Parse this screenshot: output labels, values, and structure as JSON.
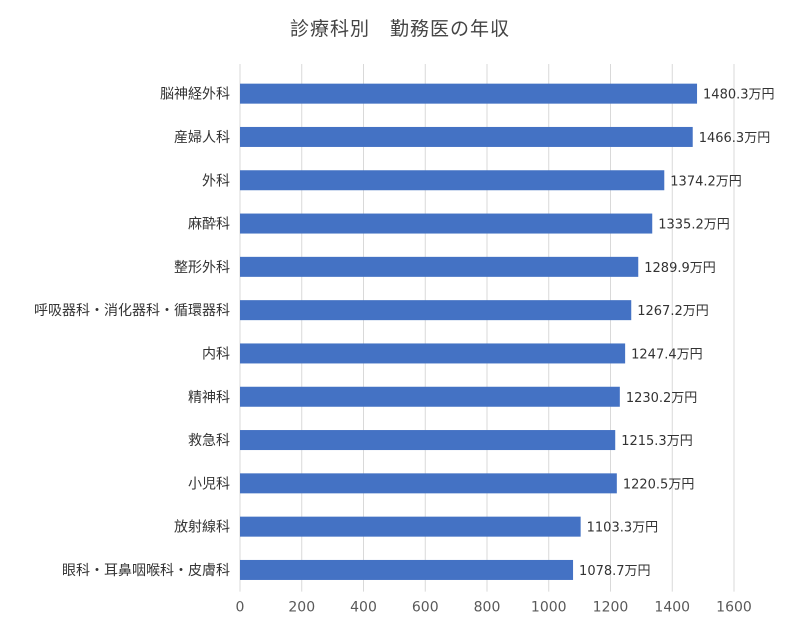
{
  "chart_data": {
    "type": "bar",
    "orientation": "horizontal",
    "title": "診療科別　勤務医の年収",
    "categories": [
      "脳神経外科",
      "産婦人科",
      "外科",
      "麻酔科",
      "整形外科",
      "呼吸器科・消化器科・循環器科",
      "内科",
      "精神科",
      "救急科",
      "小児科",
      "放射線科",
      "眼科・耳鼻咽喉科・皮膚科"
    ],
    "values": [
      1480.3,
      1466.3,
      1374.2,
      1335.2,
      1289.9,
      1267.2,
      1247.4,
      1230.2,
      1215.3,
      1220.5,
      1103.3,
      1078.7
    ],
    "data_labels": [
      "1480.3万円",
      "1466.3万円",
      "1374.2万円",
      "1335.2万円",
      "1289.9万円",
      "1267.2万円",
      "1247.4万円",
      "1230.2万円",
      "1215.3万円",
      "1220.5万円",
      "1103.3万円",
      "1078.7万円"
    ],
    "xlim": [
      0,
      1600
    ],
    "x_ticks": [
      0,
      200,
      400,
      600,
      800,
      1000,
      1200,
      1400,
      1600
    ],
    "grid": true,
    "bar_color": "#4472c4"
  }
}
